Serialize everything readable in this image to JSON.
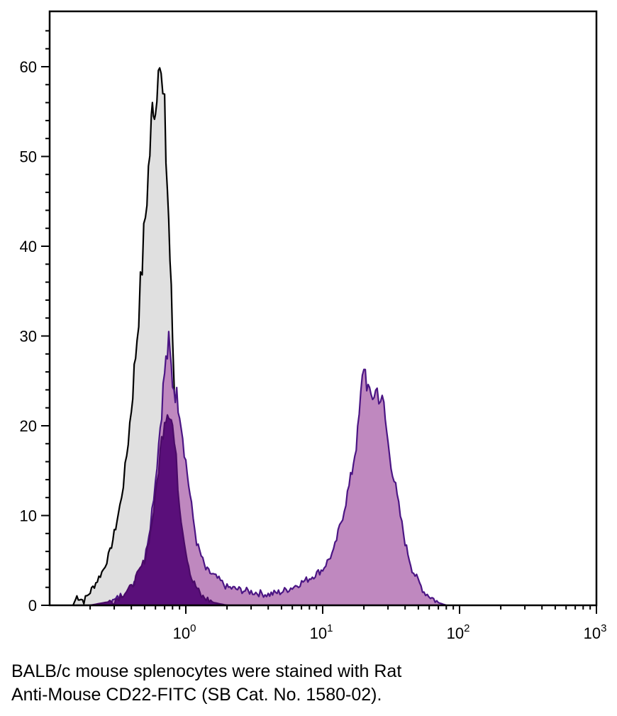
{
  "chart_data": {
    "type": "area",
    "title": "",
    "xlabel": "",
    "ylabel": "",
    "x_scale": "log",
    "xlim": [
      0.13,
      1000
    ],
    "ylim": [
      0,
      65
    ],
    "x_ticks": [
      {
        "value": 1,
        "base": "10",
        "exp": "0"
      },
      {
        "value": 10,
        "base": "10",
        "exp": "1"
      },
      {
        "value": 100,
        "base": "10",
        "exp": "2"
      },
      {
        "value": 1000,
        "base": "10",
        "exp": "3"
      }
    ],
    "y_ticks": [
      "0",
      "10",
      "20",
      "30",
      "40",
      "50",
      "60"
    ],
    "grid": false,
    "legend": "none",
    "series": [
      {
        "fill": "#e0e0e0",
        "stroke": "#000000",
        "points": [
          [
            0.15,
            0
          ],
          [
            0.16,
            1
          ],
          [
            0.18,
            0.5
          ],
          [
            0.2,
            1.5
          ],
          [
            0.22,
            2.5
          ],
          [
            0.25,
            4
          ],
          [
            0.28,
            6
          ],
          [
            0.3,
            8
          ],
          [
            0.33,
            11
          ],
          [
            0.36,
            15
          ],
          [
            0.4,
            22
          ],
          [
            0.44,
            30
          ],
          [
            0.48,
            38
          ],
          [
            0.52,
            46
          ],
          [
            0.56,
            53
          ],
          [
            0.58,
            57
          ],
          [
            0.6,
            55
          ],
          [
            0.63,
            63
          ],
          [
            0.66,
            58
          ],
          [
            0.7,
            54
          ],
          [
            0.75,
            43
          ],
          [
            0.8,
            30
          ],
          [
            0.85,
            18
          ],
          [
            0.9,
            11
          ],
          [
            1.0,
            6
          ],
          [
            1.2,
            3
          ],
          [
            1.5,
            1.5
          ],
          [
            2.0,
            0.5
          ],
          [
            3.0,
            0
          ]
        ]
      },
      {
        "fill": "#bf88bf",
        "stroke": "#4b1584",
        "points": [
          [
            0.22,
            0
          ],
          [
            0.3,
            0.5
          ],
          [
            0.4,
            2
          ],
          [
            0.5,
            5
          ],
          [
            0.55,
            9
          ],
          [
            0.6,
            14
          ],
          [
            0.65,
            20
          ],
          [
            0.7,
            26
          ],
          [
            0.75,
            29
          ],
          [
            0.8,
            25
          ],
          [
            0.9,
            22
          ],
          [
            1.0,
            16
          ],
          [
            1.1,
            11
          ],
          [
            1.2,
            7
          ],
          [
            1.4,
            4
          ],
          [
            1.7,
            3
          ],
          [
            2.0,
            2
          ],
          [
            3,
            1.5
          ],
          [
            4,
            1.2
          ],
          [
            5,
            1.5
          ],
          [
            6,
            2
          ],
          [
            8,
            3
          ],
          [
            10,
            4
          ],
          [
            12,
            6
          ],
          [
            14,
            10
          ],
          [
            16,
            14
          ],
          [
            18,
            19
          ],
          [
            20,
            27
          ],
          [
            22,
            23
          ],
          [
            25,
            24
          ],
          [
            28,
            22
          ],
          [
            30,
            18
          ],
          [
            35,
            12
          ],
          [
            40,
            7
          ],
          [
            45,
            4
          ],
          [
            55,
            1.5
          ],
          [
            70,
            0.3
          ],
          [
            80,
            0
          ]
        ]
      },
      {
        "fill": "#5a0f7a",
        "stroke": "#4a0a68",
        "points": [
          [
            0.2,
            0
          ],
          [
            0.3,
            0.5
          ],
          [
            0.4,
            2
          ],
          [
            0.5,
            5
          ],
          [
            0.55,
            8
          ],
          [
            0.6,
            12
          ],
          [
            0.65,
            17
          ],
          [
            0.7,
            21
          ],
          [
            0.75,
            22
          ],
          [
            0.8,
            20
          ],
          [
            0.85,
            16
          ],
          [
            0.9,
            11
          ],
          [
            1.0,
            6
          ],
          [
            1.1,
            3
          ],
          [
            1.3,
            1
          ],
          [
            1.6,
            0.3
          ],
          [
            2.0,
            0
          ]
        ]
      }
    ]
  },
  "caption": {
    "line1": "BALB/c mouse splenocytes were stained with Rat",
    "line2": "Anti-Mouse CD22-FITC (SB Cat. No. 1580-02)."
  }
}
